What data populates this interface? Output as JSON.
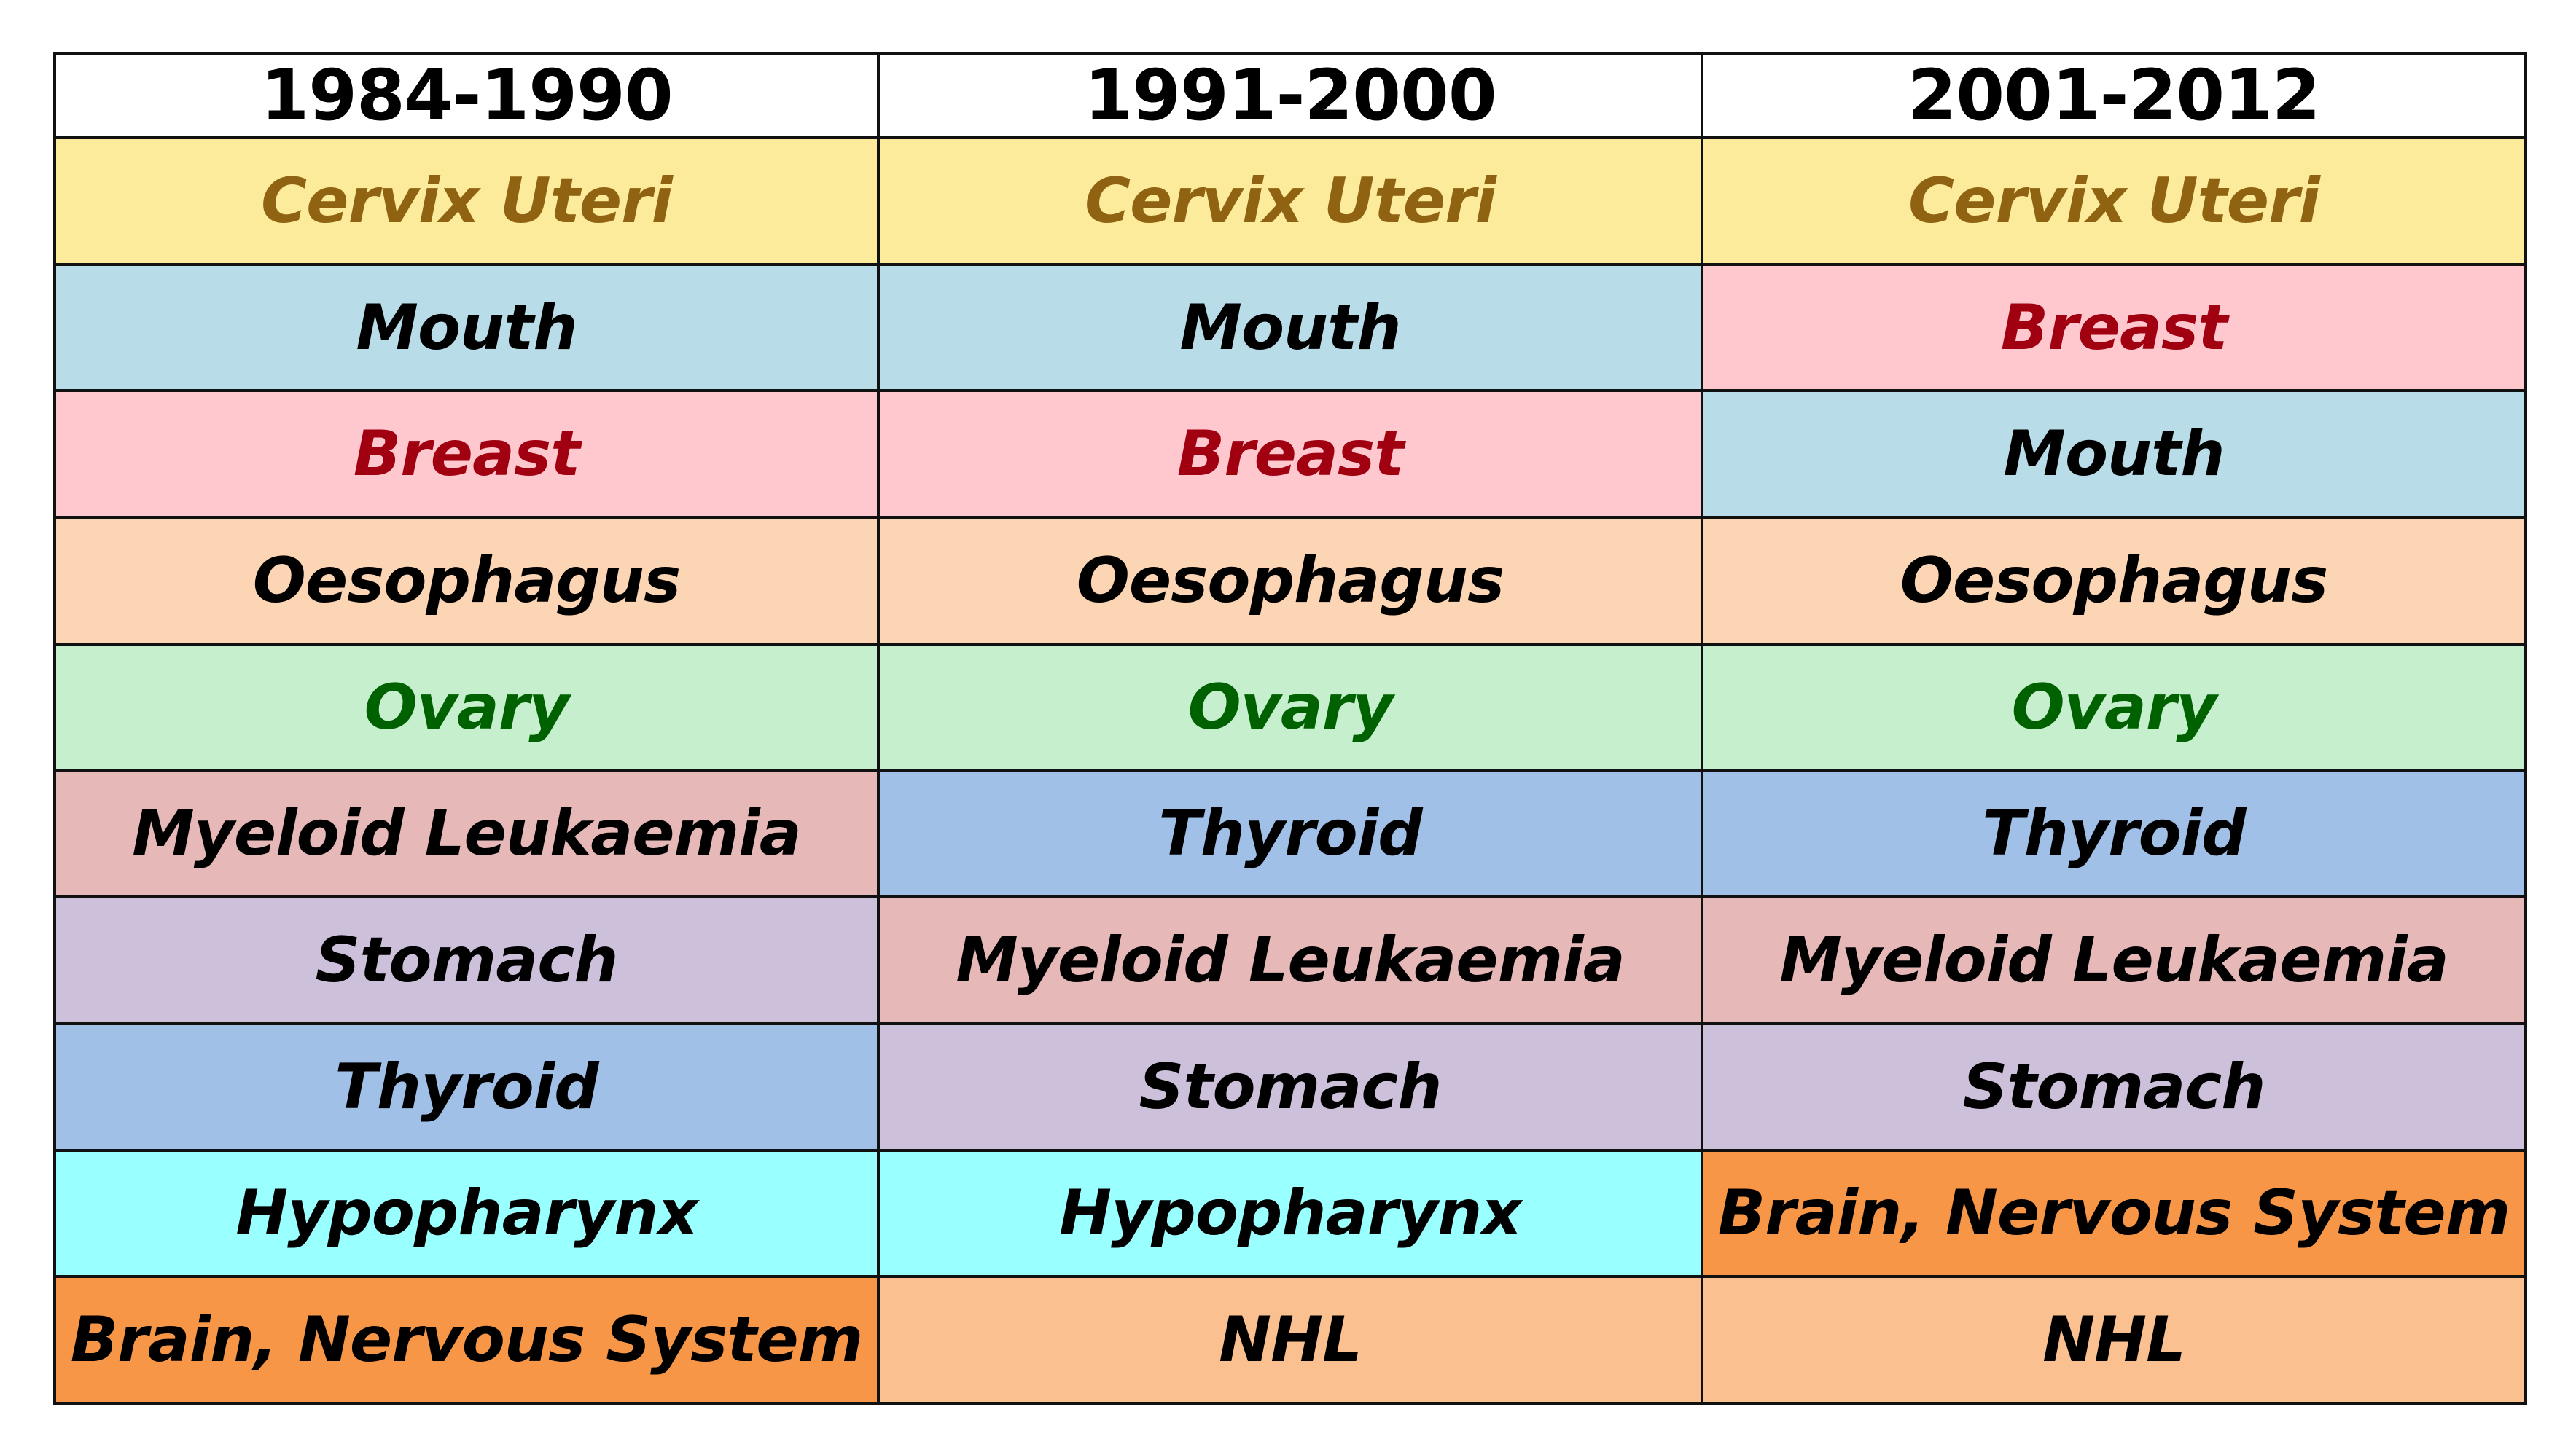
{
  "headers": [
    "1984-1990",
    "1991-2000",
    "2001-2012"
  ],
  "categories": {
    "cervix": {
      "bg": "#FDEB9C",
      "fg": "#8F6312"
    },
    "mouth": {
      "bg": "#B8DDE8",
      "fg": "#000000"
    },
    "breast": {
      "bg": "#FFC8CF",
      "fg": "#A00010"
    },
    "oesophagus": {
      "bg": "#FCD5B5",
      "fg": "#000000"
    },
    "ovary": {
      "bg": "#C6EFCE",
      "fg": "#006100"
    },
    "myeloid": {
      "bg": "#E6B8B7",
      "fg": "#000000"
    },
    "stomach": {
      "bg": "#CCC0DA",
      "fg": "#000000"
    },
    "thyroid": {
      "bg": "#A0C0E8",
      "fg": "#000000"
    },
    "hypopharynx": {
      "bg": "#99FFFF",
      "fg": "#000000"
    },
    "brain": {
      "bg": "#F79646",
      "fg": "#000000"
    },
    "nhl": {
      "bg": "#FAC090",
      "fg": "#000000"
    }
  },
  "rows": [
    [
      {
        "text": "Cervix Uteri",
        "cat": "cervix"
      },
      {
        "text": "Cervix Uteri",
        "cat": "cervix"
      },
      {
        "text": "Cervix Uteri",
        "cat": "cervix"
      }
    ],
    [
      {
        "text": "Mouth",
        "cat": "mouth"
      },
      {
        "text": "Mouth",
        "cat": "mouth"
      },
      {
        "text": "Breast",
        "cat": "breast"
      }
    ],
    [
      {
        "text": "Breast",
        "cat": "breast"
      },
      {
        "text": "Breast",
        "cat": "breast"
      },
      {
        "text": "Mouth",
        "cat": "mouth"
      }
    ],
    [
      {
        "text": "Oesophagus",
        "cat": "oesophagus"
      },
      {
        "text": "Oesophagus",
        "cat": "oesophagus"
      },
      {
        "text": "Oesophagus",
        "cat": "oesophagus"
      }
    ],
    [
      {
        "text": "Ovary",
        "cat": "ovary"
      },
      {
        "text": "Ovary",
        "cat": "ovary"
      },
      {
        "text": "Ovary",
        "cat": "ovary"
      }
    ],
    [
      {
        "text": "Myeloid Leukaemia",
        "cat": "myeloid"
      },
      {
        "text": "Thyroid",
        "cat": "thyroid"
      },
      {
        "text": "Thyroid",
        "cat": "thyroid"
      }
    ],
    [
      {
        "text": "Stomach",
        "cat": "stomach"
      },
      {
        "text": "Myeloid Leukaemia",
        "cat": "myeloid"
      },
      {
        "text": "Myeloid Leukaemia",
        "cat": "myeloid"
      }
    ],
    [
      {
        "text": "Thyroid",
        "cat": "thyroid"
      },
      {
        "text": "Stomach",
        "cat": "stomach"
      },
      {
        "text": "Stomach",
        "cat": "stomach"
      }
    ],
    [
      {
        "text": "Hypopharynx",
        "cat": "hypopharynx"
      },
      {
        "text": "Hypopharynx",
        "cat": "hypopharynx"
      },
      {
        "text": "Brain, Nervous System",
        "cat": "brain"
      }
    ],
    [
      {
        "text": "Brain, Nervous System",
        "cat": "brain"
      },
      {
        "text": "NHL",
        "cat": "nhl"
      },
      {
        "text": "NHL",
        "cat": "nhl"
      }
    ]
  ]
}
